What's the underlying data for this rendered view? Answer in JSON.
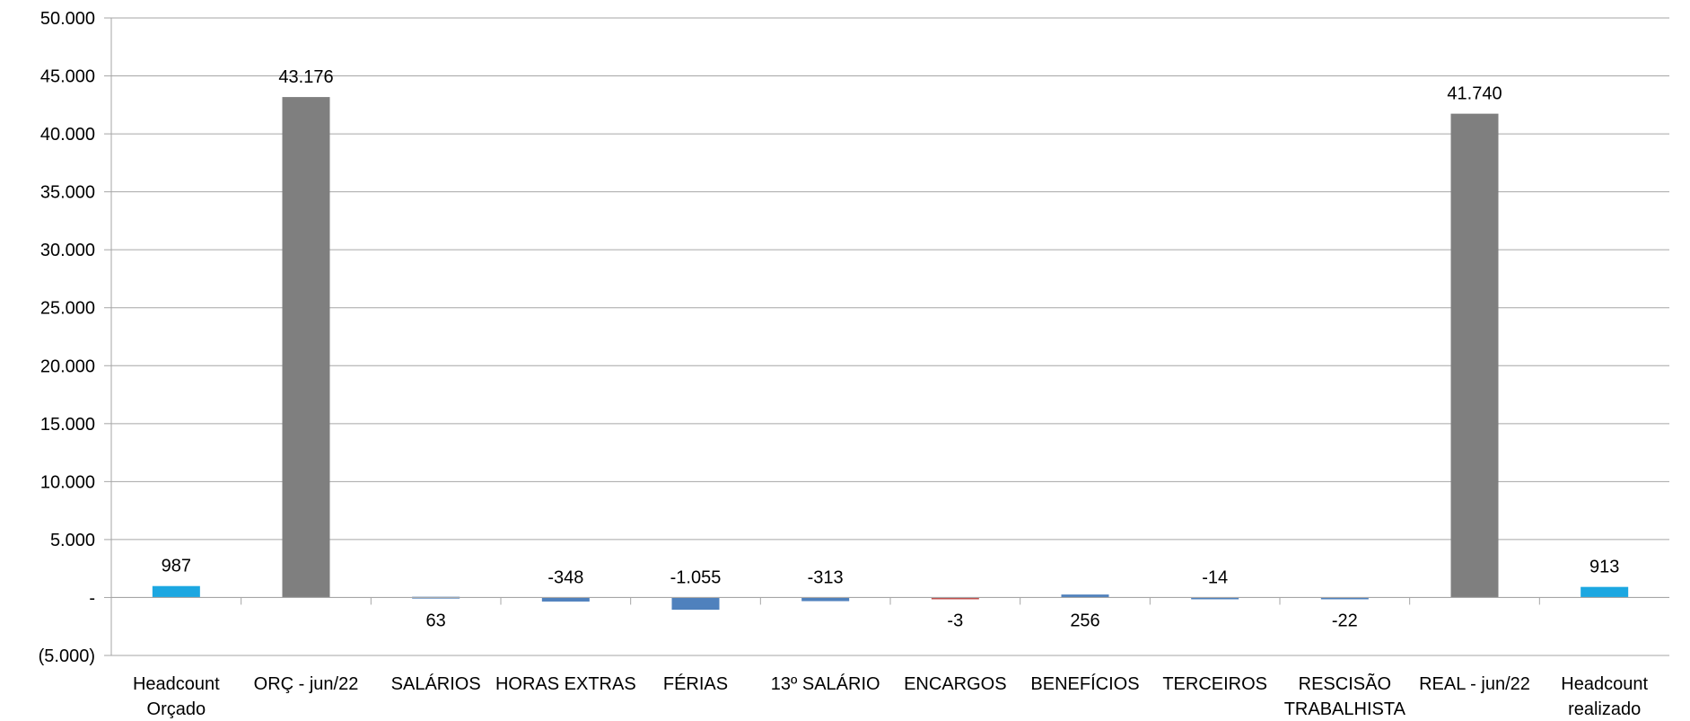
{
  "chart_data": {
    "type": "bar",
    "title": "",
    "xlabel": "",
    "ylabel": "",
    "ylim": [
      -5000,
      50000
    ],
    "ytick_step": 5000,
    "ytick_labels": [
      "(5.000)",
      "-",
      "5.000",
      "10.000",
      "15.000",
      "20.000",
      "25.000",
      "30.000",
      "35.000",
      "40.000",
      "45.000",
      "50.000"
    ],
    "grid": true,
    "legend": "none",
    "categories": [
      [
        "Headcount",
        "Orçado"
      ],
      [
        "ORÇ - jun/22"
      ],
      [
        "SALÁRIOS"
      ],
      [
        "HORAS EXTRAS"
      ],
      [
        "FÉRIAS"
      ],
      [
        "13º SALÁRIO"
      ],
      [
        "ENCARGOS"
      ],
      [
        "BENEFÍCIOS"
      ],
      [
        "TERCEIROS"
      ],
      [
        "RESCISÃO",
        "TRABALHISTA"
      ],
      [
        "REAL - jun/22"
      ],
      [
        "Headcount",
        "realizado"
      ]
    ],
    "values": [
      987,
      43176,
      63,
      -348,
      -1055,
      -313,
      -3,
      256,
      -14,
      -22,
      41740,
      913
    ],
    "data_labels": [
      "987",
      "43.176",
      "63",
      "-348",
      "-1.055",
      "-313",
      "-3",
      "256",
      "-14",
      "-22",
      "41.740",
      "913"
    ],
    "label_side": [
      "above",
      "above",
      "below",
      "above",
      "above",
      "above",
      "below",
      "below",
      "above",
      "below",
      "above",
      "above"
    ],
    "bar_colors": [
      "#1CA7E1",
      "#7F7F7F",
      "#4F81BD",
      "#4F81BD",
      "#4F81BD",
      "#4F81BD",
      "#C0504D",
      "#4F81BD",
      "#4F81BD",
      "#4F81BD",
      "#7F7F7F",
      "#1CA7E1"
    ]
  }
}
